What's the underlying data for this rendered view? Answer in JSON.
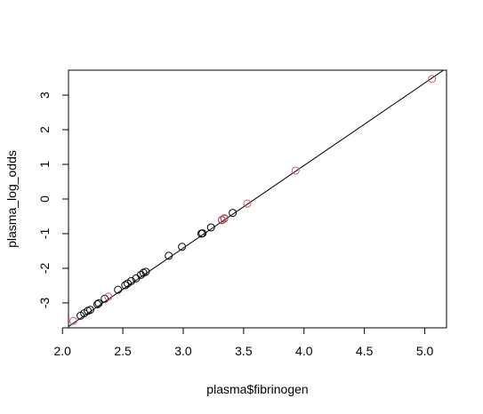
{
  "chart_data": {
    "type": "scatter",
    "xlabel": "plasma$fibrinogen",
    "ylabel": "plasma_log_odds",
    "xlim": [
      2.05,
      5.18
    ],
    "ylim": [
      -3.72,
      3.72
    ],
    "x_ticks": [
      2.0,
      2.5,
      3.0,
      3.5,
      4.0,
      4.5,
      5.0
    ],
    "x_tick_labels": [
      "2.0",
      "2.5",
      "3.0",
      "3.5",
      "4.0",
      "4.5",
      "5.0"
    ],
    "y_ticks": [
      -3,
      -2,
      -1,
      0,
      1,
      2,
      3
    ],
    "y_tick_labels": [
      "-3",
      "-2",
      "-1",
      "0",
      "1",
      "2",
      "3"
    ],
    "grid": false,
    "line": {
      "color": "#000000",
      "points": [
        [
          2.0,
          -3.8
        ],
        [
          5.18,
          3.78
        ]
      ]
    },
    "series": [
      {
        "color": "#000000",
        "points": [
          [
            2.15,
            -3.37
          ],
          [
            2.18,
            -3.3
          ],
          [
            2.21,
            -3.23
          ],
          [
            2.23,
            -3.2
          ],
          [
            2.29,
            -3.04
          ],
          [
            2.3,
            -3.01
          ],
          [
            2.35,
            -2.88
          ],
          [
            2.46,
            -2.62
          ],
          [
            2.52,
            -2.49
          ],
          [
            2.54,
            -2.44
          ],
          [
            2.57,
            -2.37
          ],
          [
            2.61,
            -2.29
          ],
          [
            2.65,
            -2.19
          ],
          [
            2.67,
            -2.13
          ],
          [
            2.69,
            -2.1
          ],
          [
            2.88,
            -1.64
          ],
          [
            2.99,
            -1.38
          ],
          [
            3.15,
            -1.0
          ],
          [
            3.16,
            -0.99
          ],
          [
            3.23,
            -0.82
          ],
          [
            3.32,
            -0.61
          ],
          [
            3.34,
            -0.56
          ],
          [
            3.41,
            -0.4
          ]
        ]
      },
      {
        "color": "#df536b",
        "points": [
          [
            2.09,
            -3.52
          ],
          [
            2.38,
            -2.82
          ],
          [
            3.32,
            -0.6
          ],
          [
            3.34,
            -0.55
          ],
          [
            3.53,
            -0.13
          ],
          [
            3.93,
            0.82
          ],
          [
            5.06,
            3.47
          ]
        ]
      }
    ]
  }
}
